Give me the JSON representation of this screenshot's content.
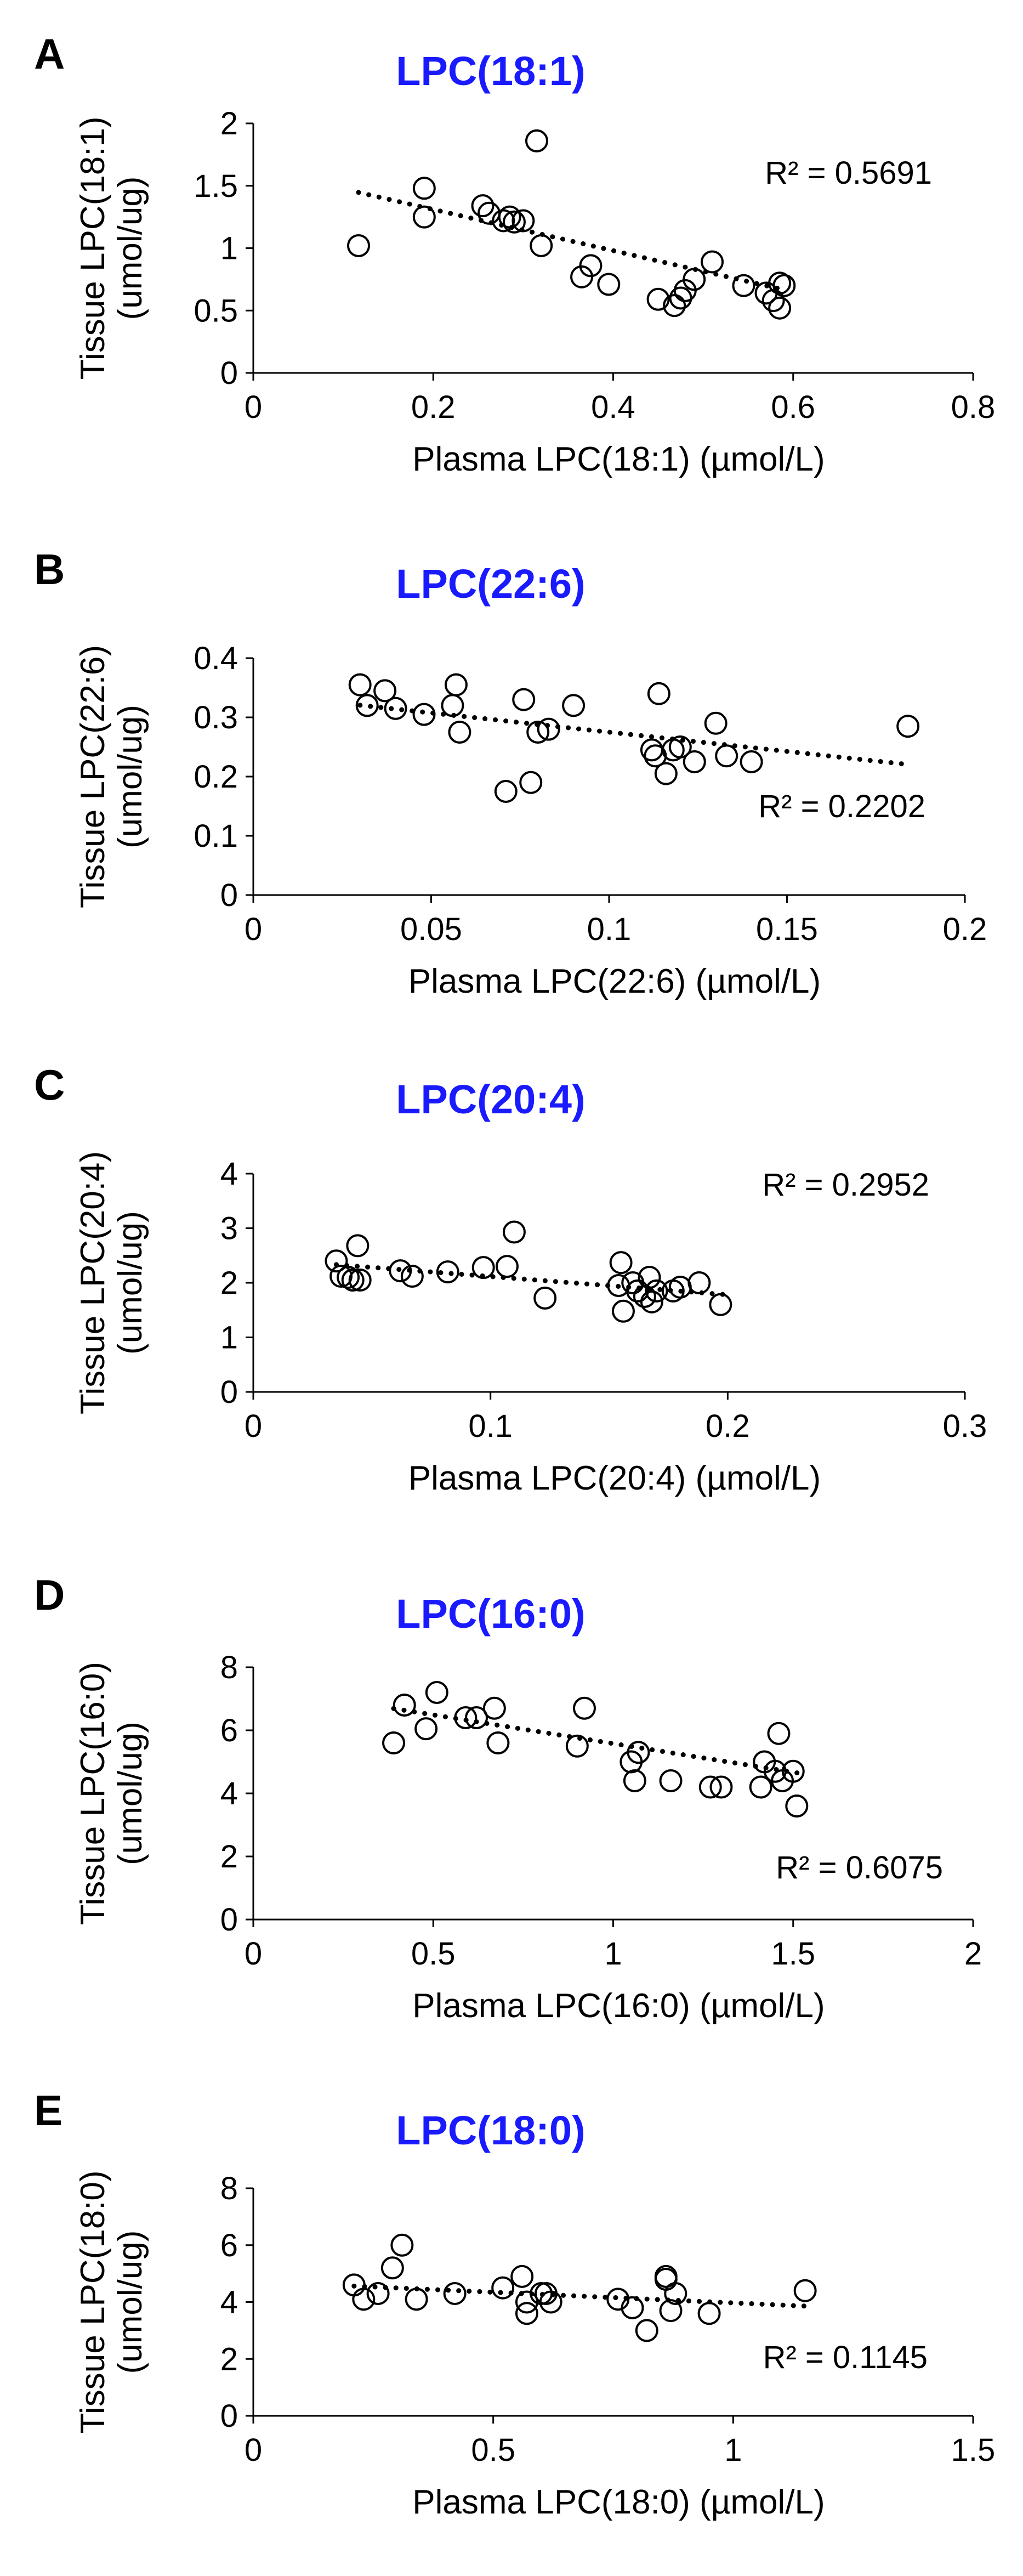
{
  "colors": {
    "title": "#1a1aff",
    "ink": "#000000",
    "background": "#ffffff"
  },
  "chart_data": [
    {
      "type": "scatter",
      "panel": "A",
      "title": "LPC(18:1)",
      "xlabel": "Plasma LPC(18:1) (µmol/L)",
      "ylabel_lines": [
        "Tissue LPC(18:1)",
        "(umol/ug)"
      ],
      "xlim": [
        0,
        0.8
      ],
      "ylim": [
        0,
        2
      ],
      "xticks": [
        0,
        0.2,
        0.4,
        0.6,
        0.8
      ],
      "xtick_labels": [
        "0",
        "0.2",
        "0.4",
        "0.6",
        "0.8"
      ],
      "yticks": [
        0,
        0.5,
        1,
        1.5,
        2
      ],
      "ytick_labels": [
        "0",
        "0.5",
        "1",
        "1.5",
        "2"
      ],
      "r2_label": "R² = 0.5691",
      "r2_corner": "top-right",
      "trendline": {
        "slope": -1.65,
        "intercept": 1.64,
        "x_range": [
          0.117,
          0.59
        ]
      },
      "points": [
        [
          0.117,
          1.02
        ],
        [
          0.19,
          1.48
        ],
        [
          0.19,
          1.25
        ],
        [
          0.255,
          1.34
        ],
        [
          0.262,
          1.28
        ],
        [
          0.278,
          1.22
        ],
        [
          0.285,
          1.25
        ],
        [
          0.29,
          1.21
        ],
        [
          0.3,
          1.22
        ],
        [
          0.315,
          1.86
        ],
        [
          0.32,
          1.02
        ],
        [
          0.365,
          0.77
        ],
        [
          0.375,
          0.86
        ],
        [
          0.395,
          0.71
        ],
        [
          0.45,
          0.59
        ],
        [
          0.468,
          0.54
        ],
        [
          0.475,
          0.6
        ],
        [
          0.48,
          0.66
        ],
        [
          0.49,
          0.75
        ],
        [
          0.51,
          0.89
        ],
        [
          0.545,
          0.7
        ],
        [
          0.57,
          0.64
        ],
        [
          0.578,
          0.58
        ],
        [
          0.585,
          0.72
        ],
        [
          0.585,
          0.52
        ],
        [
          0.59,
          0.7
        ]
      ]
    },
    {
      "type": "scatter",
      "panel": "B",
      "title": "LPC(22:6)",
      "xlabel": "Plasma LPC(22:6) (µmol/L)",
      "ylabel_lines": [
        "Tissue LPC(22:6)",
        "(umol/ug)"
      ],
      "xlim": [
        0,
        0.2
      ],
      "ylim": [
        0,
        0.4
      ],
      "xticks": [
        0,
        0.05,
        0.1,
        0.15,
        0.2
      ],
      "xtick_labels": [
        "0",
        "0.05",
        "0.1",
        "0.15",
        "0.2"
      ],
      "yticks": [
        0,
        0.1,
        0.2,
        0.3,
        0.4
      ],
      "ytick_labels": [
        "0",
        "0.1",
        "0.2",
        "0.3",
        "0.4"
      ],
      "r2_label": "R² = 0.2202",
      "r2_corner": "bottom-right",
      "trendline": {
        "slope": -0.65,
        "intercept": 0.34,
        "x_range": [
          0.03,
          0.184
        ]
      },
      "points": [
        [
          0.03,
          0.355
        ],
        [
          0.032,
          0.32
        ],
        [
          0.037,
          0.345
        ],
        [
          0.04,
          0.315
        ],
        [
          0.048,
          0.305
        ],
        [
          0.056,
          0.32
        ],
        [
          0.057,
          0.355
        ],
        [
          0.058,
          0.275
        ],
        [
          0.071,
          0.175
        ],
        [
          0.076,
          0.33
        ],
        [
          0.078,
          0.19
        ],
        [
          0.08,
          0.275
        ],
        [
          0.083,
          0.28
        ],
        [
          0.09,
          0.32
        ],
        [
          0.112,
          0.245
        ],
        [
          0.113,
          0.235
        ],
        [
          0.114,
          0.34
        ],
        [
          0.116,
          0.205
        ],
        [
          0.118,
          0.245
        ],
        [
          0.12,
          0.25
        ],
        [
          0.124,
          0.225
        ],
        [
          0.13,
          0.29
        ],
        [
          0.133,
          0.235
        ],
        [
          0.14,
          0.225
        ],
        [
          0.184,
          0.285
        ]
      ]
    },
    {
      "type": "scatter",
      "panel": "C",
      "title": "LPC(20:4)",
      "xlabel": "Plasma LPC(20:4) (µmol/L)",
      "ylabel_lines": [
        "Tissue LPC(20:4)",
        "(umol/ug)"
      ],
      "xlim": [
        0,
        0.3
      ],
      "ylim": [
        0,
        4
      ],
      "xticks": [
        0,
        0.1,
        0.2,
        0.3
      ],
      "xtick_labels": [
        "0",
        "0.1",
        "0.2",
        "0.3"
      ],
      "yticks": [
        0,
        1,
        2,
        3,
        4
      ],
      "ytick_labels": [
        "0",
        "1",
        "2",
        "3",
        "4"
      ],
      "r2_label": "R² = 0.2952",
      "r2_corner": "top-right",
      "trendline": {
        "slope": -3.35,
        "intercept": 2.45,
        "x_range": [
          0.035,
          0.2
        ]
      },
      "points": [
        [
          0.035,
          2.4
        ],
        [
          0.037,
          2.12
        ],
        [
          0.04,
          2.1
        ],
        [
          0.042,
          2.05
        ],
        [
          0.044,
          2.68
        ],
        [
          0.045,
          2.05
        ],
        [
          0.062,
          2.22
        ],
        [
          0.067,
          2.12
        ],
        [
          0.082,
          2.2
        ],
        [
          0.097,
          2.28
        ],
        [
          0.107,
          2.3
        ],
        [
          0.11,
          2.93
        ],
        [
          0.123,
          1.72
        ],
        [
          0.154,
          1.95
        ],
        [
          0.155,
          2.37
        ],
        [
          0.156,
          1.48
        ],
        [
          0.16,
          2.0
        ],
        [
          0.162,
          1.85
        ],
        [
          0.165,
          1.75
        ],
        [
          0.167,
          2.1
        ],
        [
          0.168,
          1.65
        ],
        [
          0.17,
          1.85
        ],
        [
          0.177,
          1.85
        ],
        [
          0.18,
          1.92
        ],
        [
          0.188,
          2.0
        ],
        [
          0.197,
          1.6
        ]
      ]
    },
    {
      "type": "scatter",
      "panel": "D",
      "title": "LPC(16:0)",
      "xlabel": "Plasma LPC(16:0) (µmol/L)",
      "ylabel_lines": [
        "Tissue LPC(16:0)",
        "(umol/ug)"
      ],
      "xlim": [
        0,
        2
      ],
      "ylim": [
        0,
        8
      ],
      "xticks": [
        0,
        0.5,
        1,
        1.5,
        2
      ],
      "xtick_labels": [
        "0",
        "0.5",
        "1",
        "1.5",
        "2"
      ],
      "yticks": [
        0,
        2,
        4,
        6,
        8
      ],
      "ytick_labels": [
        "0",
        "2",
        "4",
        "6",
        "8"
      ],
      "r2_label": "R² = 0.6075",
      "r2_corner": "bottom-right",
      "trendline": {
        "slope": -1.82,
        "intercept": 7.4,
        "x_range": [
          0.39,
          1.52
        ]
      },
      "points": [
        [
          0.39,
          5.6
        ],
        [
          0.42,
          6.8
        ],
        [
          0.48,
          6.05
        ],
        [
          0.51,
          7.2
        ],
        [
          0.59,
          6.4
        ],
        [
          0.62,
          6.4
        ],
        [
          0.67,
          6.7
        ],
        [
          0.68,
          5.6
        ],
        [
          0.9,
          5.5
        ],
        [
          0.92,
          6.7
        ],
        [
          1.05,
          5.0
        ],
        [
          1.06,
          4.4
        ],
        [
          1.07,
          5.3
        ],
        [
          1.16,
          4.4
        ],
        [
          1.27,
          4.2
        ],
        [
          1.3,
          4.2
        ],
        [
          1.41,
          4.2
        ],
        [
          1.42,
          5.0
        ],
        [
          1.45,
          4.7
        ],
        [
          1.46,
          5.9
        ],
        [
          1.47,
          4.4
        ],
        [
          1.5,
          4.7
        ],
        [
          1.51,
          3.6
        ]
      ]
    },
    {
      "type": "scatter",
      "panel": "E",
      "title": "LPC(18:0)",
      "xlabel": "Plasma LPC(18:0) (µmol/L)",
      "ylabel_lines": [
        "Tissue LPC(18:0)",
        "(umol/ug)"
      ],
      "xlim": [
        0,
        1.5
      ],
      "ylim": [
        0,
        8
      ],
      "xticks": [
        0,
        0.5,
        1,
        1.5
      ],
      "xtick_labels": [
        "0",
        "0.5",
        "1",
        "1.5"
      ],
      "yticks": [
        0,
        2,
        4,
        6,
        8
      ],
      "ytick_labels": [
        "0",
        "2",
        "4",
        "6",
        "8"
      ],
      "r2_label": "R² = 0.1145",
      "r2_corner": "bottom-right",
      "trendline": {
        "slope": -0.75,
        "intercept": 4.72,
        "x_range": [
          0.21,
          1.15
        ]
      },
      "points": [
        [
          0.21,
          4.6
        ],
        [
          0.23,
          4.1
        ],
        [
          0.26,
          4.3
        ],
        [
          0.29,
          5.2
        ],
        [
          0.31,
          6.0
        ],
        [
          0.34,
          4.1
        ],
        [
          0.42,
          4.3
        ],
        [
          0.52,
          4.5
        ],
        [
          0.56,
          4.9
        ],
        [
          0.57,
          4.0
        ],
        [
          0.57,
          3.6
        ],
        [
          0.6,
          4.3
        ],
        [
          0.61,
          4.3
        ],
        [
          0.62,
          4.0
        ],
        [
          0.76,
          4.1
        ],
        [
          0.79,
          3.8
        ],
        [
          0.82,
          3.0
        ],
        [
          0.86,
          4.9
        ],
        [
          0.86,
          4.8
        ],
        [
          0.87,
          3.7
        ],
        [
          0.88,
          4.3
        ],
        [
          0.95,
          3.6
        ],
        [
          1.15,
          4.4
        ]
      ]
    }
  ]
}
